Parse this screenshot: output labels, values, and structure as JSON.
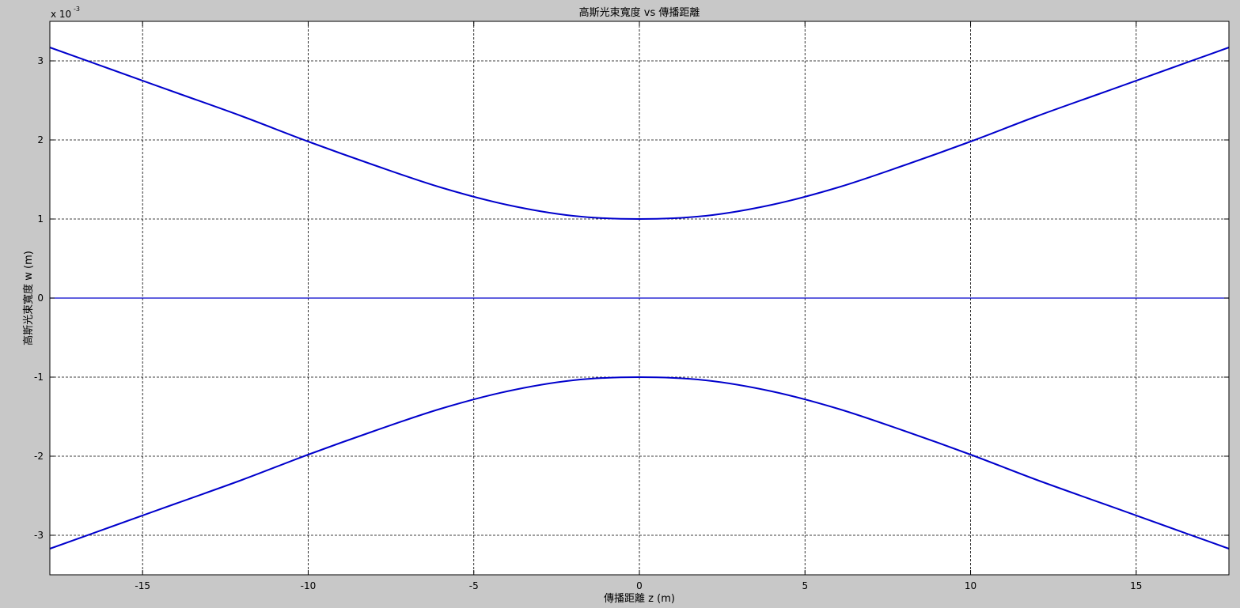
{
  "figure": {
    "background": "#c8c8c8",
    "axes_background": "#ffffff",
    "line_color": "#0000cc"
  },
  "chart_data": {
    "type": "line",
    "title": "高斯光束寬度 vs 傳播距離",
    "xlabel": "傳播距離 z (m)",
    "ylabel": "高斯光束寬度 w (m)",
    "y_exponent_label": "x 10",
    "y_exponent_power": "-3",
    "xlim": [
      -17.8,
      17.8
    ],
    "ylim": [
      -0.0035,
      0.0035
    ],
    "grid": true,
    "grid_style": "dashed",
    "xticks": [
      -15,
      -10,
      -5,
      0,
      5,
      10,
      15
    ],
    "xtick_labels": [
      "-15",
      "-10",
      "-5",
      "0",
      "5",
      "10",
      "15"
    ],
    "yticks": [
      -0.003,
      -0.002,
      -0.001,
      0,
      0.001,
      0.002,
      0.003
    ],
    "ytick_labels": [
      "-3",
      "-2",
      "-1",
      "0",
      "1",
      "2",
      "3"
    ],
    "series": [
      {
        "x": [
          -17.8,
          -16,
          -14,
          -12,
          -10,
          -8,
          -6,
          -4,
          -2,
          0,
          2,
          4,
          6,
          8,
          10,
          12,
          14,
          16,
          17.8
        ],
        "y": [
          0.00317,
          0.0029,
          0.0026,
          0.0023,
          0.00198,
          0.00168,
          0.0014,
          0.00118,
          0.00104,
          0.001,
          0.00104,
          0.00118,
          0.0014,
          0.00168,
          0.00198,
          0.0023,
          0.0026,
          0.0029,
          0.00317
        ],
        "color": "#0000cc"
      },
      {
        "x": [
          -17.8,
          -16,
          -14,
          -12,
          -10,
          -8,
          -6,
          -4,
          -2,
          0,
          2,
          4,
          6,
          8,
          10,
          12,
          14,
          16,
          17.8
        ],
        "y": [
          -0.00317,
          -0.0029,
          -0.0026,
          -0.0023,
          -0.00198,
          -0.00168,
          -0.0014,
          -0.00118,
          -0.00104,
          -0.001,
          -0.00104,
          -0.00118,
          -0.0014,
          -0.00168,
          -0.00198,
          -0.0023,
          -0.0026,
          -0.0029,
          -0.00317
        ],
        "color": "#0000cc"
      },
      {
        "x": [
          -17.8,
          17.8
        ],
        "y": [
          0,
          0
        ],
        "color": "#0000cc"
      }
    ]
  }
}
